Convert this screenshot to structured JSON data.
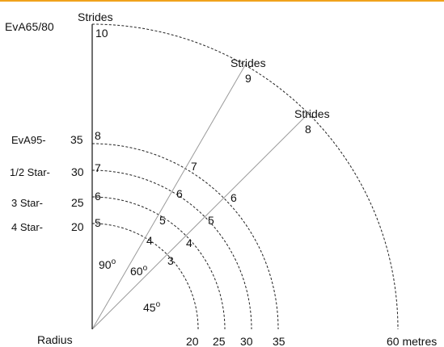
{
  "header": {
    "left_label": "EvA65/80",
    "axis_top": "Strides",
    "axis_top_value": "10"
  },
  "rows": [
    {
      "name": "EvA95-",
      "radius": "35",
      "strides": "8"
    },
    {
      "name": "1/2 Star-",
      "radius": "30",
      "strides": "7"
    },
    {
      "name": "3 Star-",
      "radius": "25",
      "strides": "6"
    },
    {
      "name": "4 Star-",
      "radius": "20",
      "strides": "5"
    }
  ],
  "ray60": {
    "label": "Strides",
    "end_value": "9",
    "marks": [
      "4",
      "5",
      "6",
      "7"
    ]
  },
  "ray45": {
    "label": "Strides",
    "end_value": "8",
    "marks": [
      "3",
      "4",
      "5",
      "6"
    ]
  },
  "angles": {
    "a90": "90",
    "a60": "60",
    "a45": "45",
    "deg": "o"
  },
  "xaxis": {
    "label": "Radius",
    "ticks": [
      "20",
      "25",
      "30",
      "35"
    ],
    "end": "60 metres"
  },
  "colors": {
    "accent": "#f0a21c"
  }
}
